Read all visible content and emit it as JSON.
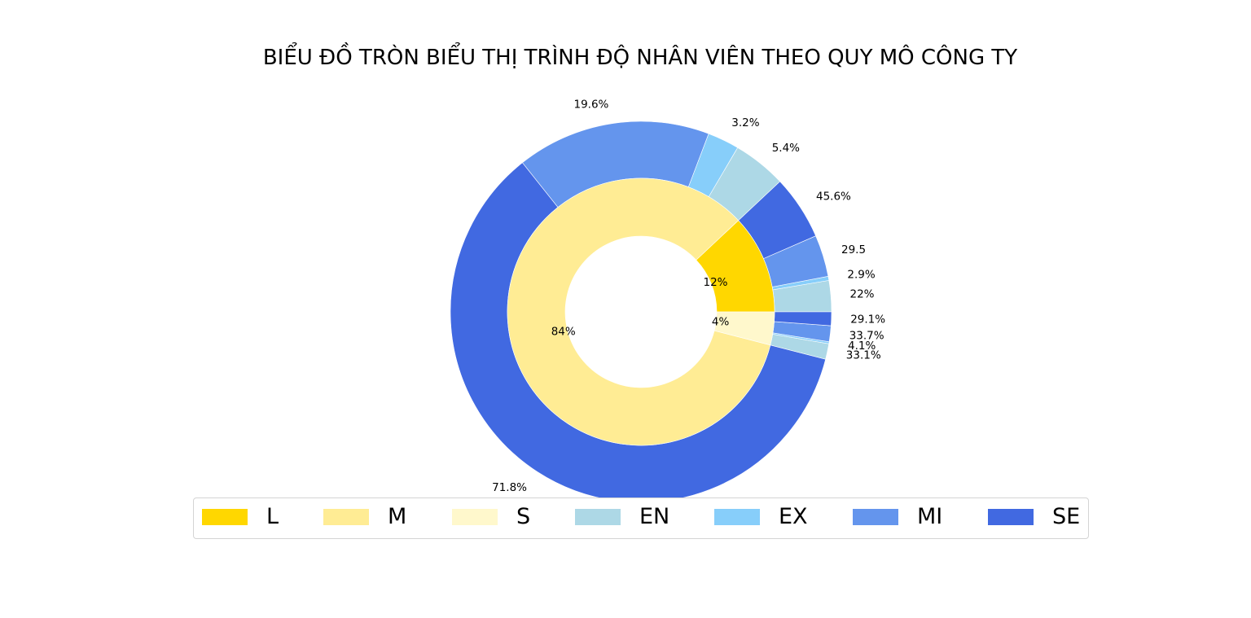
{
  "chart_data": {
    "type": "pie",
    "variant": "nested-donut",
    "title": "BIỂU ĐỒ TRÒN BIỂU THỊ TRÌNH ĐỘ NHÂN VIÊN THEO QUY MÔ CÔNG TY",
    "inner_ring": {
      "categories": [
        "L",
        "M",
        "S"
      ],
      "values": [
        12,
        84,
        4
      ],
      "labels": [
        "12%",
        "84%",
        "4%"
      ],
      "colors": [
        "#FFD700",
        "#FFEC94",
        "#FFF8CC"
      ]
    },
    "outer_ring": {
      "groups": [
        {
          "parent": "L",
          "categories": [
            "EN",
            "EX",
            "MI",
            "SE"
          ],
          "values": [
            22,
            2.9,
            29.5,
            45.6
          ],
          "labels": [
            "22%",
            "2.9%",
            "29.5",
            "45.6%"
          ]
        },
        {
          "parent": "M",
          "categories": [
            "EN",
            "EX",
            "MI",
            "SE"
          ],
          "values": [
            5.4,
            3.2,
            19.6,
            71.8
          ],
          "labels": [
            "5.4%",
            "3.2%",
            "19.6%",
            "71.8%"
          ]
        },
        {
          "parent": "S",
          "categories": [
            "EN",
            "EX",
            "MI",
            "SE"
          ],
          "values": [
            33.1,
            4.1,
            33.7,
            29.1
          ],
          "labels": [
            "33.1%",
            "4.1%",
            "33.7%",
            "29.1%"
          ]
        }
      ],
      "colors": {
        "EN": "#ADD8E6",
        "EX": "#87CEFA",
        "MI": "#6495ED",
        "SE": "#4169E1"
      }
    },
    "legend": {
      "placement": "bottom",
      "entries": [
        {
          "label": "L",
          "color": "#FFD700"
        },
        {
          "label": "M",
          "color": "#FFEC94"
        },
        {
          "label": "S",
          "color": "#FFF8CC"
        },
        {
          "label": "EN",
          "color": "#ADD8E6"
        },
        {
          "label": "EX",
          "color": "#87CEFA"
        },
        {
          "label": "MI",
          "color": "#6495ED"
        },
        {
          "label": "SE",
          "color": "#4169E1"
        }
      ]
    }
  }
}
